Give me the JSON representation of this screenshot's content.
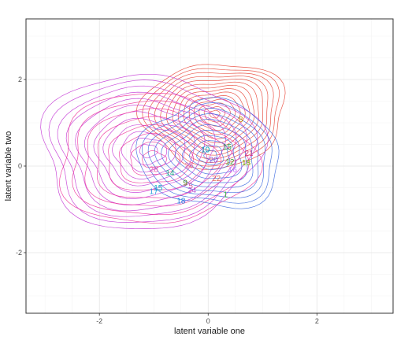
{
  "chart_data": {
    "type": "contour-scatter",
    "xlabel": "latent variable one",
    "ylabel": "latent variable two",
    "xlim": [
      -3.35,
      3.4
    ],
    "ylim": [
      -3.4,
      3.4
    ],
    "x_ticks": [
      -2,
      0,
      2
    ],
    "y_ticks": [
      -2,
      0,
      2
    ],
    "x_tick_labels": [
      "-2",
      "0",
      "2"
    ],
    "y_tick_labels": [
      "-2",
      "0",
      "2"
    ],
    "grid": true,
    "legend": "none",
    "contour_groups": [
      {
        "color": "#E8473A",
        "center": [
          0.12,
          1.2
        ],
        "sd": [
          0.55,
          0.5
        ],
        "rot": 0.2,
        "levels": 14,
        "max_r": 2.4
      },
      {
        "color": "#C43BD6",
        "center": [
          -1.1,
          0.35
        ],
        "sd": [
          0.95,
          0.85
        ],
        "rot": 0.05,
        "levels": 12,
        "max_r": 2.1
      },
      {
        "color": "#F0369B",
        "center": [
          -1.0,
          0.15
        ],
        "sd": [
          0.9,
          0.75
        ],
        "rot": -0.05,
        "levels": 8,
        "max_r": 2.0
      },
      {
        "color": "#3E6CE0",
        "center": [
          0.05,
          0.25
        ],
        "sd": [
          0.6,
          0.55
        ],
        "rot": -0.4,
        "levels": 11,
        "max_r": 2.2
      }
    ],
    "labels": [
      {
        "text": "8",
        "x": 0.6,
        "y": 1.08,
        "color": "#C48A00"
      },
      {
        "text": "10",
        "x": -0.05,
        "y": 0.38,
        "color": "#00A9B8"
      },
      {
        "text": "15",
        "x": 0.35,
        "y": 0.45,
        "color": "#24A35A"
      },
      {
        "text": "20",
        "x": 0.1,
        "y": 0.15,
        "color": "#8E55D6"
      },
      {
        "text": "21",
        "x": 0.75,
        "y": 0.3,
        "color": "#D6307A"
      },
      {
        "text": "12",
        "x": 0.4,
        "y": 0.1,
        "color": "#3F9A3A"
      },
      {
        "text": "18",
        "x": 0.7,
        "y": 0.08,
        "color": "#7CAE00"
      },
      {
        "text": "26",
        "x": -0.35,
        "y": 0.02,
        "color": "#E46AA8"
      },
      {
        "text": "16",
        "x": 0.45,
        "y": -0.08,
        "color": "#C77CFF"
      },
      {
        "text": "28",
        "x": -1.0,
        "y": -0.07,
        "color": "#E85AB0"
      },
      {
        "text": "14",
        "x": -0.7,
        "y": -0.15,
        "color": "#1FA98A"
      },
      {
        "text": "22",
        "x": 0.15,
        "y": -0.28,
        "color": "#E26B5A"
      },
      {
        "text": "9",
        "x": -0.42,
        "y": -0.38,
        "color": "#4F8B1E"
      },
      {
        "text": "5",
        "x": -0.32,
        "y": -0.45,
        "color": "#D65AA0"
      },
      {
        "text": "24",
        "x": -0.3,
        "y": -0.55,
        "color": "#B95AD8"
      },
      {
        "text": "15",
        "x": -0.92,
        "y": -0.5,
        "color": "#00B3C4"
      },
      {
        "text": "17",
        "x": -1.0,
        "y": -0.58,
        "color": "#2E9BE0"
      },
      {
        "text": "1",
        "x": 0.32,
        "y": -0.65,
        "color": "#3DAF4A"
      },
      {
        "text": "18",
        "x": -0.5,
        "y": -0.8,
        "color": "#1E7FE0"
      }
    ]
  }
}
